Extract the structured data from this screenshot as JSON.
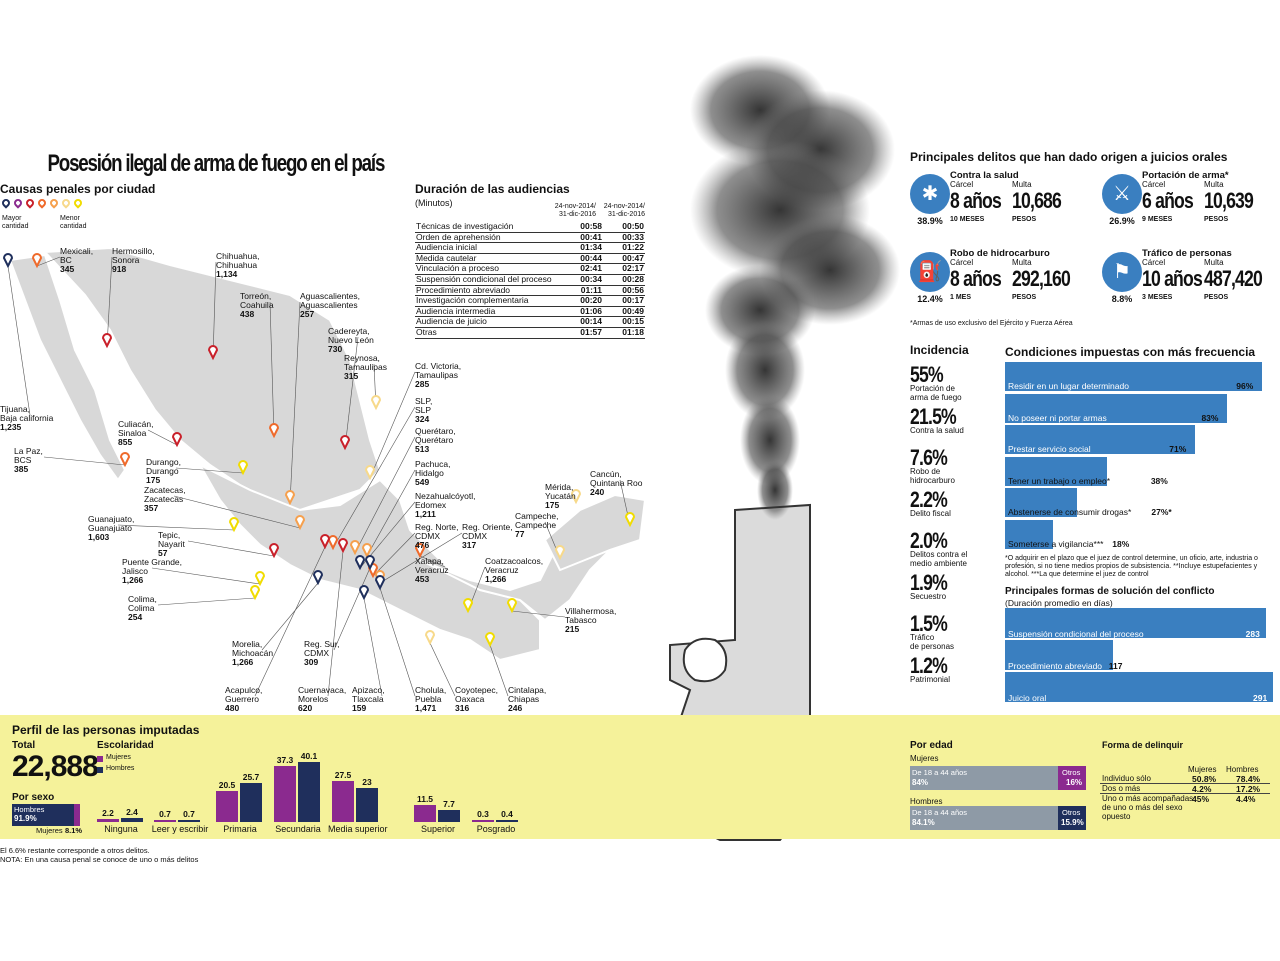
{
  "title": "Posesión ilegal de arma de fuego en el país",
  "cities_section": {
    "title": "Causas penales por ciudad",
    "legend_more": "Mayor\ncantidad",
    "legend_less": "Menor\ncantidad",
    "legend_colors": [
      "#1f2f5c",
      "#8b2a8f",
      "#c9202a",
      "#ef6a2b",
      "#f6a04d",
      "#f7d98a",
      "#f1dc00"
    ]
  },
  "chart_data": [
    {
      "type": "table",
      "title": "Causas penales por ciudad",
      "rows": [
        {
          "city": "Tijuana, Baja california",
          "value": 1235
        },
        {
          "city": "Mexicali, BC",
          "value": 345
        },
        {
          "city": "Hermosillo, Sonora",
          "value": 918
        },
        {
          "city": "Chihuahua, Chihuahua",
          "value": 1134
        },
        {
          "city": "La Paz, BCS",
          "value": 385
        },
        {
          "city": "Culiacán, Sinaloa",
          "value": 855
        },
        {
          "city": "Torreón, Coahuila",
          "value": 438
        },
        {
          "city": "Aguascalientes, Aguascalientes",
          "value": 257
        },
        {
          "city": "Cadereyta, Nuevo León",
          "value": 730
        },
        {
          "city": "Reynosa, Tamaulipas",
          "value": 315
        },
        {
          "city": "Cd. Victoria, Tamaulipas",
          "value": 285
        },
        {
          "city": "SLP, SLP",
          "value": 324
        },
        {
          "city": "Querétaro, Querétaro",
          "value": 513
        },
        {
          "city": "Pachuca, Hidalgo",
          "value": 549
        },
        {
          "city": "Nezahualcóyotl, Edomex",
          "value": 1211
        },
        {
          "city": "Reg. Norte, CDMX",
          "value": 476
        },
        {
          "city": "Reg. Oriente, CDMX",
          "value": 317
        },
        {
          "city": "Xalapa, Veracruz",
          "value": 453
        },
        {
          "city": "Coatzacoalcos, Veracruz",
          "value": 1266
        },
        {
          "city": "Durango, Durango",
          "value": 175
        },
        {
          "city": "Zacatecas, Zacatecas",
          "value": 357
        },
        {
          "city": "Guanajuato, Guanajuato",
          "value": 1603
        },
        {
          "city": "Tepic, Nayarit",
          "value": 57
        },
        {
          "city": "Puente Grande, Jalisco",
          "value": 1266
        },
        {
          "city": "Colima, Colima",
          "value": 254
        },
        {
          "city": "Morelia, Michoacán",
          "value": 1266
        },
        {
          "city": "Reg. Sur, CDMX",
          "value": 309
        },
        {
          "city": "Acapulco, Guerrero",
          "value": 480
        },
        {
          "city": "Cuernavaca, Morelos",
          "value": 620
        },
        {
          "city": "Apizaco, Tlaxcala",
          "value": 159
        },
        {
          "city": "Cholula, Puebla",
          "value": 1471
        },
        {
          "city": "Coyotepec, Oaxaca",
          "value": 316
        },
        {
          "city": "Cintalapa, Chiapas",
          "value": 246
        },
        {
          "city": "Villahermosa, Tabasco",
          "value": 215
        },
        {
          "city": "Campeche, Campeche",
          "value": 77
        },
        {
          "city": "Mérida, Yucatán",
          "value": 175
        },
        {
          "city": "Cancún, Quintana Roo",
          "value": 240
        }
      ]
    },
    {
      "type": "table",
      "title": "Duración de las audiencias",
      "subtitle": "(Minutos)",
      "columns": [
        "24-nov-2014/\n31-dic-2016",
        "24-nov-2014/\n31-dic-2016"
      ],
      "rows": [
        {
          "label": "Técnicas de investigación",
          "a": "00:58",
          "b": "00:50"
        },
        {
          "label": "Orden de aprehensión",
          "a": "00:41",
          "b": "00:33"
        },
        {
          "label": "Audiencia inicial",
          "a": "01:34",
          "b": "01:22"
        },
        {
          "label": "Medida cautelar",
          "a": "00:44",
          "b": "00:47"
        },
        {
          "label": "Vinculación a proceso",
          "a": "02:41",
          "b": "02:17"
        },
        {
          "label": "Suspensión condicional del proceso",
          "a": "00:34",
          "b": "00:28"
        },
        {
          "label": "Procedimiento abreviado",
          "a": "01:11",
          "b": "00:56"
        },
        {
          "label": "Investigación complementaria",
          "a": "00:20",
          "b": "00:17"
        },
        {
          "label": "Audiencia intermedia",
          "a": "01:06",
          "b": "00:49"
        },
        {
          "label": "Audiencia de juicio",
          "a": "00:14",
          "b": "00:15"
        },
        {
          "label": "Otras",
          "a": "01:57",
          "b": "01:18"
        }
      ]
    },
    {
      "type": "bar",
      "title": "Condiciones impuestas con más frecuencia",
      "categories": [
        "Residir en un lugar determinado",
        "No poseer ni portar armas",
        "Prestar servicio social",
        "Tener un trabajo o empleo*",
        "Abstenerse de consumir drogas*",
        "Someterse a vigilancia***"
      ],
      "values": [
        96,
        83,
        71,
        38,
        27,
        18
      ],
      "value_labels": [
        "96%",
        "83%",
        "71%",
        "38%",
        "27%*",
        "18%"
      ],
      "xlim": [
        0,
        100
      ]
    },
    {
      "type": "bar",
      "title": "Principales formas de solución del conflicto",
      "subtitle": "(Duración promedio en días)",
      "categories": [
        "Suspensión condicional del proceso",
        "Procedimiento abreviado",
        "Juicio oral"
      ],
      "values": [
        283,
        117,
        291
      ]
    },
    {
      "type": "bar",
      "title": "Escolaridad",
      "categories": [
        "Ninguna",
        "Leer y escribir",
        "Primaria",
        "Secundaria",
        "Media superior",
        "Superior",
        "Posgrado"
      ],
      "series": [
        {
          "name": "Mujeres",
          "values": [
            2.2,
            0.7,
            20.5,
            37.3,
            27.5,
            11.5,
            0.3
          ]
        },
        {
          "name": "Hombres",
          "values": [
            2.4,
            0.7,
            25.7,
            40.1,
            23,
            7.7,
            0.4
          ]
        }
      ]
    }
  ],
  "duration": {
    "title": "Duración de las audiencias",
    "unit": "(Minutos)",
    "col_a": "24-nov-2014/\n31-dic-2016",
    "col_b": "24-nov-2014/\n31-dic-2016"
  },
  "principal": {
    "title": "Principales delitos que han dado origen a juicios orales",
    "items": [
      {
        "name": "Contra la salud",
        "pct": "38.9%",
        "carcel_label": "Cárcel",
        "carcel": "8 años",
        "carcel_sub": "10 MESES",
        "multa_label": "Multa",
        "multa": "10,686",
        "multa_sub": "PESOS"
      },
      {
        "name": "Portación de arma*",
        "pct": "26.9%",
        "carcel_label": "Cárcel",
        "carcel": "6 años",
        "carcel_sub": "9 MESES",
        "multa_label": "Multa",
        "multa": "10,639",
        "multa_sub": "PESOS"
      },
      {
        "name": "Robo de hidrocarburo",
        "pct": "12.4%",
        "carcel_label": "Cárcel",
        "carcel": "8 años",
        "carcel_sub": "1 MES",
        "multa_label": "Multa",
        "multa": "292,160",
        "multa_sub": "PESOS"
      },
      {
        "name": "Tráfico de personas",
        "pct": "8.8%",
        "carcel_label": "Cárcel",
        "carcel": "10 años",
        "carcel_sub": "3 MESES",
        "multa_label": "Multa",
        "multa": "487,420",
        "multa_sub": "PESOS"
      }
    ],
    "footnote": "*Armas de uso exclusivo del Ejército y Fuerza Aérea"
  },
  "incidencia": {
    "title": "Incidencia",
    "items": [
      {
        "pct": "55%",
        "label": "Portación de\narma de fuego"
      },
      {
        "pct": "21.5%",
        "label": "Contra la salud"
      },
      {
        "pct": "7.6%",
        "label": "Robo de\nhidrocarburo"
      },
      {
        "pct": "2.2%",
        "label": "Delito fiscal"
      },
      {
        "pct": "2.0%",
        "label": "Delitos contra el\nmedio ambiente"
      },
      {
        "pct": "1.9%",
        "label": "Secuestro"
      },
      {
        "pct": "1.5%",
        "label": "Tráfico\nde personas"
      },
      {
        "pct": "1.2%",
        "label": "Patrimonial"
      }
    ]
  },
  "condiciones": {
    "title": "Condiciones impuestas con más frecuencia",
    "footnote": "*O adquirir en el plazo que el juez de control determine, un oficio, arte, industria o profesión, si no tiene medios propios de subsistencia. **Incluye estupefacientes y alcohol. ***La que determine el juez de control"
  },
  "solucion": {
    "title": "Principales formas de solución del conflicto",
    "subtitle": "(Duración promedio en días)"
  },
  "perfil": {
    "title": "Perfil de las personas imputadas",
    "total_label": "Total",
    "total": "22,888",
    "sexo_label": "Por sexo",
    "hombres_label": "Hombres",
    "hombres_pct": "91.9%",
    "mujeres_label": "Mujeres",
    "mujeres_pct": "8.1%",
    "escolaridad_label": "Escolaridad",
    "legend_mujeres": "Mujeres",
    "legend_hombres": "Hombres",
    "edad_title": "Por edad",
    "edad_mujeres_label": "Mujeres",
    "edad_m_range": "De 18 a 44 años",
    "edad_m_pct": "84%",
    "edad_m_otros": "Otros",
    "edad_m_otros_pct": "16%",
    "edad_hombres_label": "Hombres",
    "edad_h_range": "De 18 a 44 años",
    "edad_h_pct": "84.1%",
    "edad_h_otros": "Otros",
    "edad_h_otros_pct": "15.9%",
    "forma_title": "Forma de delinquir",
    "forma_col_m": "Mujeres",
    "forma_col_h": "Hombres",
    "forma_rows": [
      {
        "label": "Individuo sólo",
        "m": "50.8%",
        "h": "78.4%"
      },
      {
        "label": "Dos o más",
        "m": "4.2%",
        "h": "17.2%"
      },
      {
        "label": "Uno o más acompañadas\nde uno o más del sexo\nopuesto",
        "m": "45%",
        "h": "4.4%"
      }
    ]
  },
  "notes": {
    "n1": "El 6.6% restante corresponde a otros delitos.",
    "n2": "NOTA: En una causa penal se conoce de uno o más delitos"
  },
  "colors": {
    "blue": "#3a7fc0",
    "mujeres": "#8b2a8f",
    "hombres": "#1f2f5c",
    "band": "#f5f29a"
  }
}
